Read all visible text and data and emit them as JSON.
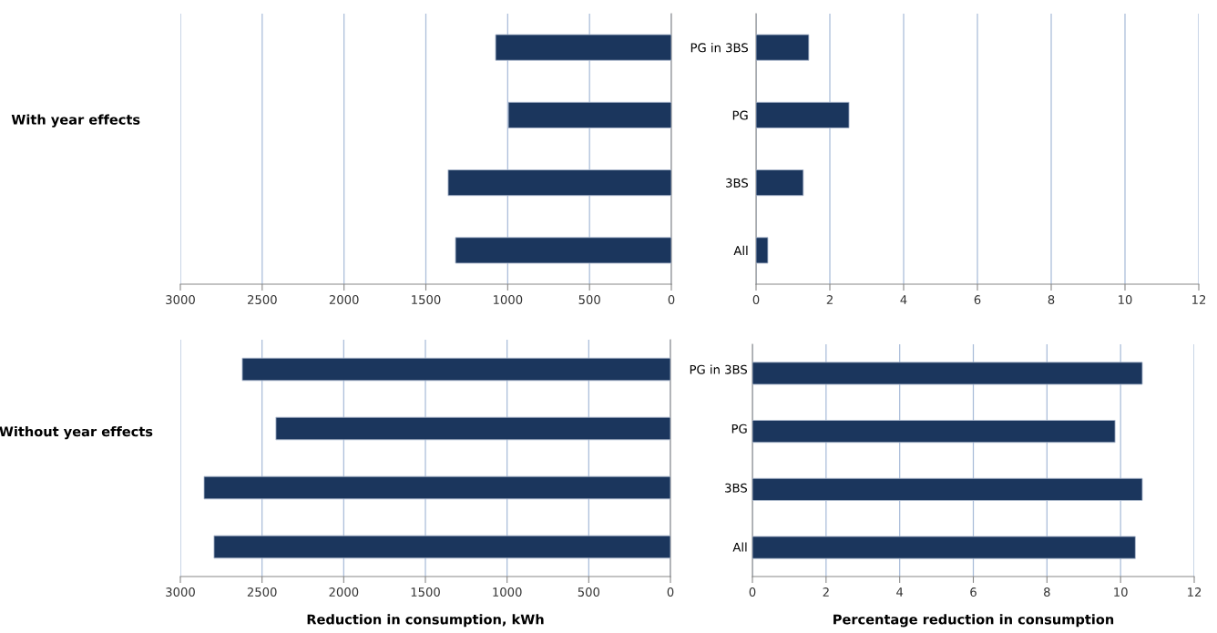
{
  "chart_data": [
    {
      "type": "bar",
      "orientation": "horizontal",
      "ylabel": "With year effects",
      "categories": [
        "PG in 3BS",
        "PG",
        "3BS",
        "All"
      ],
      "series": [
        {
          "color": "#1b365d",
          "values": [
            1074,
            996,
            1364,
            1319
          ]
        }
      ],
      "xlim": [
        3000,
        0
      ],
      "xticks": [
        3000,
        2500,
        2000,
        1500,
        1000,
        500,
        0
      ],
      "grid": "x"
    },
    {
      "type": "bar",
      "orientation": "horizontal",
      "categories": [
        null,
        null,
        null,
        null
      ],
      "series": [
        {
          "color": "#1b365d",
          "values": [
            1.43,
            2.52,
            1.28,
            0.32
          ]
        }
      ],
      "xlim": [
        0,
        12
      ],
      "xticks": [
        0,
        2,
        4,
        6,
        8,
        10,
        12
      ],
      "grid": "x",
      "tick_labels": "x"
    },
    {
      "type": "bar",
      "orientation": "horizontal",
      "ylabel": "Without year effects",
      "xlabel": "Reduction in consumption, kWh",
      "categories": [
        "PG in 3BS",
        "PG",
        "3BS",
        "All"
      ],
      "series": [
        {
          "color": "#1b365d",
          "values": [
            2621,
            2415,
            2855,
            2794
          ]
        }
      ],
      "xlim": [
        3000,
        0
      ],
      "xticks": [
        3000,
        2500,
        2000,
        1500,
        1000,
        500,
        0
      ],
      "grid": "x"
    },
    {
      "type": "bar",
      "orientation": "horizontal",
      "xlabel": "Percentage reduction in consumption",
      "categories": [
        null,
        null,
        null,
        null
      ],
      "series": [
        {
          "color": "#1b365d",
          "values": [
            10.59,
            9.85,
            10.59,
            10.4
          ]
        }
      ],
      "xlim": [
        0,
        12
      ],
      "xticks": [
        0,
        2,
        4,
        6,
        8,
        10,
        12
      ],
      "grid": "x",
      "tick_labels": "x"
    }
  ]
}
